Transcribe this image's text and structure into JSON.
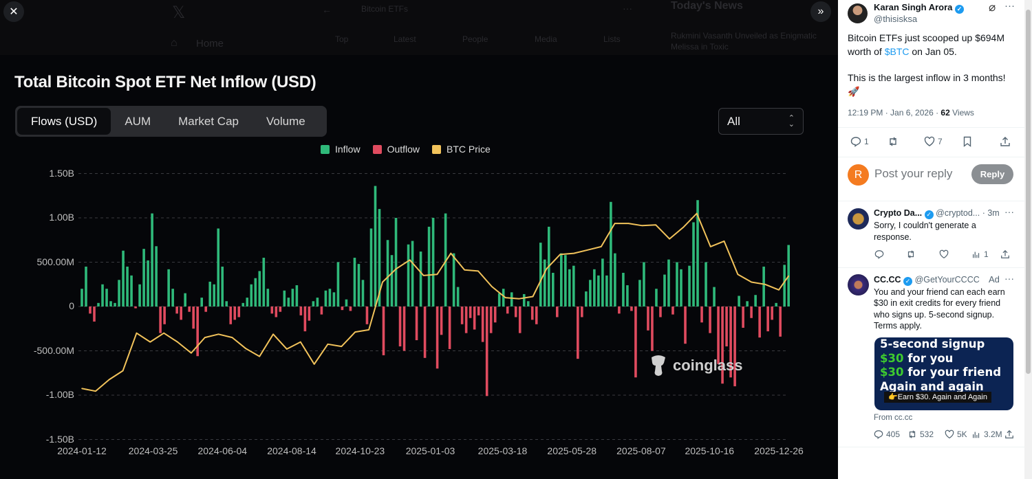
{
  "background_page": {
    "search_text": "Bitcoin ETFs",
    "nav_home": "Home",
    "tabs": [
      "Top",
      "Latest",
      "People",
      "Media",
      "Lists"
    ],
    "news_title": "Today's News",
    "news_item": "Rukmini Vasanth Unveiled as Enigmatic Melissa in Toxic"
  },
  "viewer": {
    "close_icon": "close-icon",
    "expand_icon": "double-chevron-right-icon"
  },
  "chart_panel": {
    "tabs": [
      "Flows (USD)",
      "AUM",
      "Market Cap",
      "Volume"
    ],
    "active_tab": "Flows (USD)",
    "range_value": "All",
    "watermark": "coinglass"
  },
  "chart_data": {
    "type": "bar",
    "title": "Total Bitcoin Spot ETF Net Inflow (USD)",
    "legend": [
      "Inflow",
      "Outflow",
      "BTC Price"
    ],
    "legend_placement": "top-center",
    "colors": {
      "inflow": "#2fb97a",
      "outflow": "#e04b5f",
      "price": "#f2c35b",
      "grid": "#3a3b40"
    },
    "grid": true,
    "ylim": [
      -1500000000,
      1500000000
    ],
    "y_ticks": [
      "1.50B",
      "1.00B",
      "500.00M",
      "0",
      "-500.00M",
      "-1.00B",
      "-1.50B"
    ],
    "y_tick_values": [
      1500,
      1000,
      500,
      0,
      -500,
      -1000,
      -1500
    ],
    "x_ticks": [
      "2024-01-12",
      "2024-03-25",
      "2024-06-04",
      "2024-08-14",
      "2024-10-23",
      "2025-01-03",
      "2025-03-18",
      "2025-05-28",
      "2025-08-07",
      "2025-10-16",
      "2025-12-26"
    ],
    "flow_date_range": [
      "2024-01-12",
      "2026-01-05"
    ],
    "flow_unit": "USD millions",
    "flows": [
      200,
      450,
      -80,
      -170,
      40,
      250,
      200,
      60,
      40,
      300,
      630,
      450,
      350,
      -20,
      250,
      650,
      520,
      1050,
      680,
      -300,
      -200,
      420,
      200,
      -80,
      -150,
      150,
      -60,
      -250,
      -560,
      100,
      -60,
      280,
      250,
      880,
      450,
      60,
      -200,
      -150,
      -120,
      40,
      100,
      250,
      320,
      400,
      550,
      200,
      -80,
      -120,
      -60,
      180,
      100,
      200,
      240,
      -100,
      -280,
      -160,
      60,
      100,
      -90,
      180,
      200,
      160,
      500,
      -40,
      80,
      -50,
      550,
      480,
      300,
      -200,
      880,
      1360,
      1100,
      -550,
      750,
      580,
      1000,
      -450,
      -500,
      700,
      740,
      -380,
      620,
      -580,
      900,
      1000,
      -700,
      -320,
      1050,
      -480,
      600,
      220,
      -200,
      -300,
      -130,
      -260,
      -100,
      -400,
      -1010,
      -300,
      -180,
      150,
      200,
      -80,
      160,
      -120,
      -300,
      140,
      60,
      -150,
      -200,
      720,
      530,
      900,
      380,
      -120,
      600,
      580,
      420,
      460,
      -590,
      -120,
      170,
      300,
      420,
      350,
      540,
      350,
      1180,
      600,
      -80,
      380,
      240,
      -50,
      -800,
      300,
      500,
      -270,
      -500,
      200,
      -120,
      360,
      530,
      -90,
      500,
      420,
      -420,
      460,
      950,
      1200,
      -180,
      500,
      -300,
      220,
      -650,
      -870,
      -450,
      -800,
      -900,
      120,
      -240,
      60,
      -130,
      130,
      -350,
      450,
      -280,
      -150,
      40,
      -340,
      470,
      694
    ],
    "price_series": {
      "name": "BTC Price",
      "dates": [
        "2024-01-12",
        "2024-01-26",
        "2024-02-09",
        "2024-02-23",
        "2024-03-08",
        "2024-03-22",
        "2024-04-05",
        "2024-04-19",
        "2024-05-03",
        "2024-05-17",
        "2024-05-31",
        "2024-06-14",
        "2024-06-28",
        "2024-07-12",
        "2024-07-26",
        "2024-08-09",
        "2024-08-23",
        "2024-09-06",
        "2024-09-20",
        "2024-10-04",
        "2024-10-18",
        "2024-11-01",
        "2024-11-15",
        "2024-11-29",
        "2024-12-13",
        "2024-12-27",
        "2025-01-10",
        "2025-01-24",
        "2025-02-07",
        "2025-02-21",
        "2025-03-07",
        "2025-03-21",
        "2025-04-04",
        "2025-04-18",
        "2025-05-02",
        "2025-05-16",
        "2025-05-30",
        "2025-06-13",
        "2025-06-27",
        "2025-07-11",
        "2025-07-25",
        "2025-08-08",
        "2025-08-22",
        "2025-09-05",
        "2025-09-19",
        "2025-10-03",
        "2025-10-17",
        "2025-10-31",
        "2025-11-14",
        "2025-11-28",
        "2025-12-12",
        "2025-12-26",
        "2026-01-05"
      ],
      "values": [
        43000,
        41800,
        47000,
        51000,
        68000,
        64000,
        68000,
        64000,
        59000,
        66000,
        67500,
        66000,
        61000,
        57500,
        67500,
        60800,
        64000,
        54000,
        63000,
        62000,
        68500,
        69500,
        91000,
        97000,
        101000,
        94000,
        94500,
        104000,
        96500,
        96000,
        89000,
        84000,
        83500,
        84500,
        97000,
        103500,
        104000,
        105500,
        107000,
        117500,
        117500,
        116500,
        116800,
        110500,
        115700,
        122000,
        107000,
        109500,
        94500,
        91000,
        90000,
        87500,
        93800
      ]
    }
  },
  "tweet": {
    "author_name": "Karan Singh Arora",
    "author_handle": "@thisisksa",
    "text_line1_a": "Bitcoin ETFs just scooped up $694M",
    "text_line2_a": "worth of ",
    "cashtag": "$BTC",
    "text_line2_b": " on Jan 05.",
    "text_line3": "This is the largest inflow in 3 months!",
    "emoji": "🚀",
    "time": "12:19 PM · Jan 6, 2026 · ",
    "views_count": "62",
    "views_label": " Views",
    "replies": "1",
    "likes": "7"
  },
  "reply_box": {
    "avatar_letter": "R",
    "placeholder": "Post your reply",
    "button": "Reply"
  },
  "replies": [
    {
      "name": "Crypto Da...",
      "handle": "@cryptod... · 3m",
      "text1": "Sorry, I couldn't generate a",
      "text2": "response.",
      "views": "1"
    },
    {
      "name": "CC.CC",
      "handle": "@GetYourCCCC",
      "ad": "Ad",
      "text": [
        "You and your friend can each earn",
        "$30 in exit credits for every friend",
        "who signs up. 5-second signup.",
        "Terms apply."
      ],
      "image": {
        "line1": "5-second signup",
        "amount": "$30",
        "line2": " for you",
        "line3": " for your friend",
        "line4": "Again and again",
        "caption": "👉Earn $30. Again and Again"
      },
      "from": "From cc.cc",
      "replies": "405",
      "reposts": "532",
      "likes": "5K",
      "views": "3.2M"
    }
  ]
}
